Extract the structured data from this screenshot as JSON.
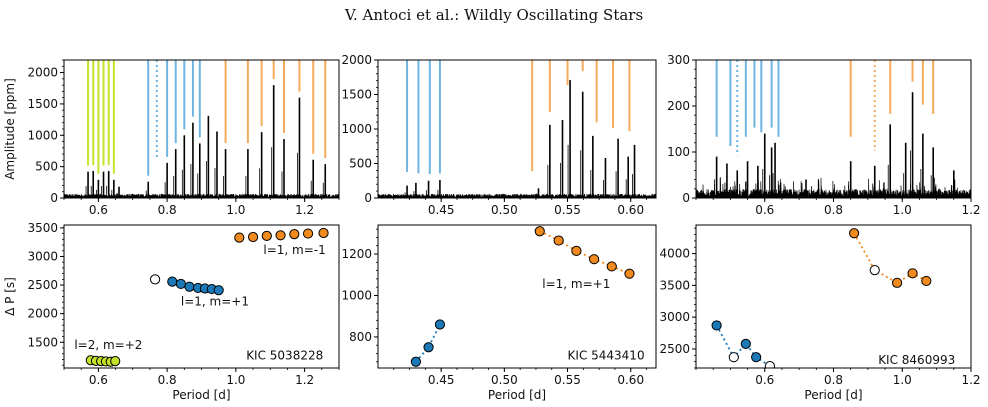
{
  "header": "V. Antoci  et al.: Wildly Oscillating Stars",
  "colors": {
    "green": "#c8e32b",
    "blue": "#6fb4e0",
    "orange": "#f5ab5c",
    "blue_dot": "#1b79b8",
    "orange_dot": "#f08a1d",
    "green_dot": "#c3e22a"
  },
  "chart_data": [
    {
      "type": "line",
      "panel": "top-left",
      "xlim": [
        0.5,
        1.3
      ],
      "ylim": [
        0,
        2200
      ],
      "ylabel": "Amplitude [ppm]",
      "xticks": [
        0.6,
        0.8,
        1.0,
        1.2
      ],
      "xtick_labels": [
        "0.6",
        "0.8",
        "1.0",
        "1.2"
      ],
      "yticks": [
        0,
        500,
        1000,
        1500,
        2000
      ],
      "ytick_labels": [
        "0",
        "500",
        "1000",
        "1500",
        "2000"
      ],
      "peaks": [
        {
          "x": 0.57,
          "y": 420
        },
        {
          "x": 0.585,
          "y": 430
        },
        {
          "x": 0.6,
          "y": 290
        },
        {
          "x": 0.615,
          "y": 420
        },
        {
          "x": 0.63,
          "y": 430
        },
        {
          "x": 0.645,
          "y": 290
        },
        {
          "x": 0.66,
          "y": 180
        },
        {
          "x": 0.745,
          "y": 260
        },
        {
          "x": 0.8,
          "y": 560
        },
        {
          "x": 0.825,
          "y": 780
        },
        {
          "x": 0.85,
          "y": 1000
        },
        {
          "x": 0.875,
          "y": 1200
        },
        {
          "x": 0.895,
          "y": 870
        },
        {
          "x": 0.92,
          "y": 1310
        },
        {
          "x": 0.945,
          "y": 1060
        },
        {
          "x": 0.97,
          "y": 780
        },
        {
          "x": 1.035,
          "y": 780
        },
        {
          "x": 1.075,
          "y": 1050
        },
        {
          "x": 1.11,
          "y": 1800
        },
        {
          "x": 1.14,
          "y": 940
        },
        {
          "x": 1.185,
          "y": 1600
        },
        {
          "x": 1.225,
          "y": 610
        },
        {
          "x": 1.26,
          "y": 540
        }
      ],
      "markers": [
        {
          "x": 0.57,
          "y0": 420,
          "color": "green"
        },
        {
          "x": 0.585,
          "y0": 430,
          "color": "green"
        },
        {
          "x": 0.6,
          "y0": 290,
          "color": "green"
        },
        {
          "x": 0.615,
          "y0": 420,
          "color": "green"
        },
        {
          "x": 0.63,
          "y0": 430,
          "color": "green"
        },
        {
          "x": 0.645,
          "y0": 290,
          "color": "green"
        },
        {
          "x": 0.745,
          "y0": 260,
          "color": "blue"
        },
        {
          "x": 0.77,
          "y0": 550,
          "color": "blue",
          "dotted": true
        },
        {
          "x": 0.8,
          "y0": 560,
          "color": "blue"
        },
        {
          "x": 0.825,
          "y0": 780,
          "color": "blue"
        },
        {
          "x": 0.85,
          "y0": 1000,
          "color": "blue"
        },
        {
          "x": 0.875,
          "y0": 1200,
          "color": "blue"
        },
        {
          "x": 0.895,
          "y0": 870,
          "color": "blue"
        },
        {
          "x": 0.97,
          "y0": 780,
          "color": "orange"
        },
        {
          "x": 1.035,
          "y0": 780,
          "color": "orange"
        },
        {
          "x": 1.075,
          "y0": 1050,
          "color": "orange"
        },
        {
          "x": 1.11,
          "y0": 1800,
          "color": "orange"
        },
        {
          "x": 1.14,
          "y0": 940,
          "color": "orange"
        },
        {
          "x": 1.185,
          "y0": 1600,
          "color": "orange"
        },
        {
          "x": 1.225,
          "y0": 610,
          "color": "orange"
        },
        {
          "x": 1.26,
          "y0": 540,
          "color": "orange"
        }
      ]
    },
    {
      "type": "line",
      "panel": "top-middle",
      "xlim": [
        0.4,
        0.62
      ],
      "ylim": [
        0,
        2000
      ],
      "xticks": [
        0.45,
        0.5,
        0.55,
        0.6
      ],
      "xtick_labels": [
        "0.45",
        "0.50",
        "0.55",
        "0.60"
      ],
      "yticks": [
        0,
        500,
        1000,
        1500,
        2000
      ],
      "ytick_labels": [
        "0",
        "500",
        "1000",
        "1500",
        "2000"
      ],
      "peaks": [
        {
          "x": 0.423,
          "y": 180
        },
        {
          "x": 0.43,
          "y": 220
        },
        {
          "x": 0.44,
          "y": 250
        },
        {
          "x": 0.449,
          "y": 260
        },
        {
          "x": 0.527,
          "y": 140
        },
        {
          "x": 0.536,
          "y": 1060
        },
        {
          "x": 0.546,
          "y": 1130
        },
        {
          "x": 0.552,
          "y": 1710
        },
        {
          "x": 0.562,
          "y": 1540
        },
        {
          "x": 0.57,
          "y": 900
        },
        {
          "x": 0.58,
          "y": 580
        },
        {
          "x": 0.59,
          "y": 860
        },
        {
          "x": 0.598,
          "y": 600
        },
        {
          "x": 0.603,
          "y": 770
        }
      ],
      "markers": [
        {
          "x": 0.423,
          "y0": 290,
          "color": "blue"
        },
        {
          "x": 0.432,
          "y0": 270,
          "color": "blue"
        },
        {
          "x": 0.441,
          "y0": 260,
          "color": "blue"
        },
        {
          "x": 0.449,
          "y0": 270,
          "color": "blue"
        },
        {
          "x": 0.522,
          "y0": 300,
          "color": "orange"
        },
        {
          "x": 0.536,
          "y0": 1160,
          "color": "orange"
        },
        {
          "x": 0.55,
          "y0": 1550,
          "color": "orange"
        },
        {
          "x": 0.562,
          "y0": 1750,
          "color": "orange"
        },
        {
          "x": 0.573,
          "y0": 1010,
          "color": "orange"
        },
        {
          "x": 0.586,
          "y0": 930,
          "color": "orange"
        },
        {
          "x": 0.599,
          "y0": 880,
          "color": "orange"
        }
      ]
    },
    {
      "type": "line",
      "panel": "top-right",
      "xlim": [
        0.4,
        1.2
      ],
      "ylim": [
        0,
        300
      ],
      "xticks": [
        0.6,
        0.8,
        1.0,
        1.2
      ],
      "xtick_labels": [
        "0.6",
        "0.8",
        "1.0",
        "1.2"
      ],
      "yticks": [
        0,
        100,
        200,
        300
      ],
      "ytick_labels": [
        "0",
        "100",
        "200",
        "300"
      ],
      "peaks": [
        {
          "x": 0.46,
          "y": 90
        },
        {
          "x": 0.49,
          "y": 75
        },
        {
          "x": 0.52,
          "y": 60
        },
        {
          "x": 0.55,
          "y": 80
        },
        {
          "x": 0.58,
          "y": 70
        },
        {
          "x": 0.6,
          "y": 140
        },
        {
          "x": 0.62,
          "y": 110
        },
        {
          "x": 0.63,
          "y": 120
        },
        {
          "x": 0.72,
          "y": 40
        },
        {
          "x": 0.85,
          "y": 80
        },
        {
          "x": 0.92,
          "y": 70
        },
        {
          "x": 0.965,
          "y": 160
        },
        {
          "x": 1.01,
          "y": 120
        },
        {
          "x": 1.03,
          "y": 230
        },
        {
          "x": 1.06,
          "y": 140
        },
        {
          "x": 1.09,
          "y": 110
        },
        {
          "x": 1.15,
          "y": 60
        }
      ],
      "markers": [
        {
          "x": 0.46,
          "y0": 120,
          "color": "blue"
        },
        {
          "x": 0.5,
          "y0": 100,
          "color": "blue"
        },
        {
          "x": 0.52,
          "y0": 80,
          "color": "blue",
          "dotted": true
        },
        {
          "x": 0.545,
          "y0": 120,
          "color": "blue"
        },
        {
          "x": 0.57,
          "y0": 140,
          "color": "blue"
        },
        {
          "x": 0.59,
          "y0": 130,
          "color": "blue"
        },
        {
          "x": 0.62,
          "y0": 140,
          "color": "blue"
        },
        {
          "x": 0.64,
          "y0": 120,
          "color": "blue"
        },
        {
          "x": 0.85,
          "y0": 120,
          "color": "orange"
        },
        {
          "x": 0.92,
          "y0": 90,
          "color": "orange",
          "dotted": true
        },
        {
          "x": 0.965,
          "y0": 170,
          "color": "orange"
        },
        {
          "x": 1.03,
          "y0": 240,
          "color": "orange"
        },
        {
          "x": 1.06,
          "y0": 190,
          "color": "orange"
        },
        {
          "x": 1.09,
          "y0": 170,
          "color": "orange"
        }
      ]
    },
    {
      "type": "scatter",
      "panel": "bottom-left",
      "xlim": [
        0.5,
        1.3
      ],
      "ylim": [
        1050,
        3550
      ],
      "xlabel": "Period [d]",
      "ylabel": "Δ P [s]",
      "xticks": [
        0.6,
        0.8,
        1.0,
        1.2
      ],
      "xtick_labels": [
        "0.6",
        "0.8",
        "1.0",
        "1.2"
      ],
      "yticks": [
        1500,
        2000,
        2500,
        3000,
        3500
      ],
      "ytick_labels": [
        "1500",
        "2000",
        "2500",
        "3000",
        "3500"
      ],
      "series": [
        {
          "name": "l=2, m=+2",
          "color": "green_dot",
          "x": [
            0.578,
            0.593,
            0.608,
            0.622,
            0.636,
            0.649
          ],
          "y": [
            1185,
            1175,
            1170,
            1165,
            1160,
            1170
          ],
          "open": [
            false,
            false,
            false,
            false,
            false,
            false
          ],
          "connect": false
        },
        {
          "name": "l=1, m=+1",
          "color": "blue_dot",
          "x": [
            0.765,
            0.815,
            0.84,
            0.865,
            0.89,
            0.91,
            0.93,
            0.95
          ],
          "y": [
            2600,
            2560,
            2520,
            2470,
            2450,
            2440,
            2430,
            2410
          ],
          "open": [
            true,
            false,
            false,
            false,
            false,
            false,
            false,
            false
          ],
          "connect": false
        },
        {
          "name": "l=1, m=-1",
          "color": "orange_dot",
          "x": [
            1.01,
            1.05,
            1.09,
            1.13,
            1.17,
            1.21,
            1.255
          ],
          "y": [
            3330,
            3340,
            3360,
            3370,
            3390,
            3400,
            3410
          ],
          "open": [
            false,
            false,
            false,
            false,
            false,
            false,
            false
          ],
          "connect": false
        }
      ],
      "labels": [
        {
          "text": "l=1, m=-1",
          "x": 1.08,
          "y": 3040
        },
        {
          "text": "l=1, m=+1",
          "x": 0.84,
          "y": 2140
        },
        {
          "text": "l=2, m=+2",
          "x": 0.53,
          "y": 1380
        },
        {
          "text": "KIC 5038228",
          "x": 1.03,
          "y": 1200
        }
      ]
    },
    {
      "type": "scatter",
      "panel": "bottom-middle",
      "xlim": [
        0.4,
        0.62
      ],
      "ylim": [
        650,
        1340
      ],
      "xlabel": "Period [d]",
      "xticks": [
        0.45,
        0.5,
        0.55,
        0.6
      ],
      "xtick_labels": [
        "0.45",
        "0.50",
        "0.55",
        "0.60"
      ],
      "yticks": [
        800,
        1000,
        1200
      ],
      "ytick_labels": [
        "800",
        "1000",
        "1200"
      ],
      "series": [
        {
          "name": "",
          "color": "blue_dot",
          "x": [
            0.43,
            0.44,
            0.449
          ],
          "y": [
            680,
            750,
            860
          ],
          "open": [
            false,
            false,
            false
          ],
          "connect": true
        },
        {
          "name": "l=1, m=+1",
          "color": "orange_dot",
          "x": [
            0.528,
            0.543,
            0.557,
            0.571,
            0.585,
            0.599
          ],
          "y": [
            1310,
            1265,
            1215,
            1175,
            1140,
            1105
          ],
          "open": [
            false,
            false,
            false,
            false,
            false,
            false
          ],
          "connect": true
        }
      ],
      "labels": [
        {
          "text": "l=1, m=+1",
          "x": 0.53,
          "y": 1035
        },
        {
          "text": "KIC 5443410",
          "x": 0.55,
          "y": 690
        }
      ]
    },
    {
      "type": "scatter",
      "panel": "bottom-right",
      "xlim": [
        0.4,
        1.2
      ],
      "ylim": [
        2200,
        4450
      ],
      "xlabel": "Period [d]",
      "xticks": [
        0.6,
        0.8,
        1.0,
        1.2
      ],
      "xtick_labels": [
        "0.6",
        "0.8",
        "1.0",
        "1.2"
      ],
      "yticks": [
        2500,
        3000,
        3500,
        4000
      ],
      "ytick_labels": [
        "2500",
        "3000",
        "3500",
        "4000"
      ],
      "series": [
        {
          "name": "",
          "color": "blue_dot",
          "x": [
            0.46,
            0.51,
            0.545,
            0.575,
            0.615
          ],
          "y": [
            2870,
            2370,
            2580,
            2370,
            2230
          ],
          "open": [
            false,
            true,
            false,
            false,
            true
          ],
          "connect": true
        },
        {
          "name": "",
          "color": "orange_dot",
          "x": [
            0.86,
            0.92,
            0.985,
            1.03,
            1.07
          ],
          "y": [
            4320,
            3740,
            3540,
            3690,
            3570
          ],
          "open": [
            false,
            true,
            false,
            false,
            false
          ],
          "connect": true
        }
      ],
      "labels": [
        {
          "text": "KIC 8460993",
          "x": 0.93,
          "y": 2260
        }
      ]
    }
  ]
}
